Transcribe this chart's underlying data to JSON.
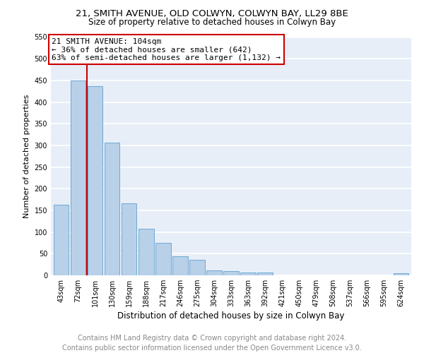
{
  "title1": "21, SMITH AVENUE, OLD COLWYN, COLWYN BAY, LL29 8BE",
  "title2": "Size of property relative to detached houses in Colwyn Bay",
  "xlabel": "Distribution of detached houses by size in Colwyn Bay",
  "ylabel": "Number of detached properties",
  "categories": [
    "43sqm",
    "72sqm",
    "101sqm",
    "130sqm",
    "159sqm",
    "188sqm",
    "217sqm",
    "246sqm",
    "275sqm",
    "304sqm",
    "333sqm",
    "363sqm",
    "392sqm",
    "421sqm",
    "450sqm",
    "479sqm",
    "508sqm",
    "537sqm",
    "566sqm",
    "595sqm",
    "624sqm"
  ],
  "values": [
    163,
    450,
    437,
    307,
    167,
    107,
    75,
    44,
    36,
    11,
    10,
    7,
    6,
    0,
    0,
    0,
    0,
    0,
    0,
    0,
    5
  ],
  "bar_color": "#b8d0e8",
  "bar_edge_color": "#6fa8d4",
  "property_index": 2,
  "property_label": "21 SMITH AVENUE: 104sqm",
  "annotation_line1": "← 36% of detached houses are smaller (642)",
  "annotation_line2": "63% of semi-detached houses are larger (1,132) →",
  "red_line_color": "#cc0000",
  "ylim": [
    0,
    550
  ],
  "yticks": [
    0,
    50,
    100,
    150,
    200,
    250,
    300,
    350,
    400,
    450,
    500,
    550
  ],
  "footer1": "Contains HM Land Registry data © Crown copyright and database right 2024.",
  "footer2": "Contains public sector information licensed under the Open Government Licence v3.0.",
  "bg_color": "#e8eef8",
  "grid_color": "#ffffff",
  "title1_fontsize": 9.5,
  "title2_fontsize": 8.5,
  "xlabel_fontsize": 8.5,
  "ylabel_fontsize": 8,
  "tick_fontsize": 7,
  "footer_fontsize": 7,
  "annot_fontsize": 8
}
